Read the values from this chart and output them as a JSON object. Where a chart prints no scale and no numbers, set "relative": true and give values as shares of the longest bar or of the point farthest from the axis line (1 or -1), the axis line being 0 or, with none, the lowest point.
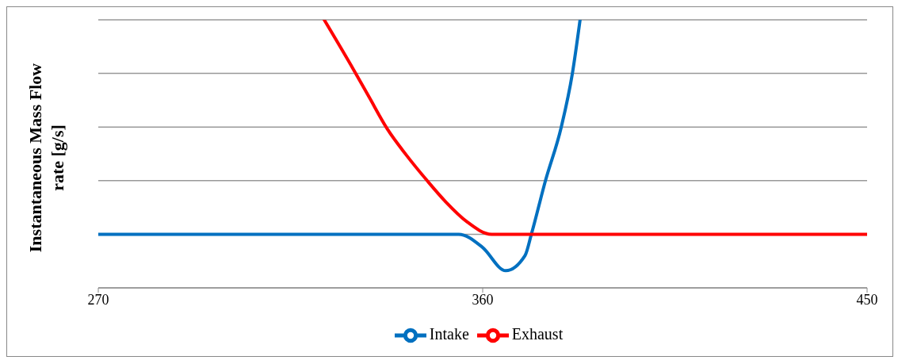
{
  "chart_data": {
    "type": "line",
    "relative": true,
    "ylabel": "Instantaneous Mass Flow rate [g/s]",
    "xlim": [
      270,
      450
    ],
    "xticks": [
      270,
      360,
      450
    ],
    "grid": "y",
    "legend": "bottom",
    "marker": "none",
    "line_style": "solid",
    "series": [
      {
        "name": "Intake",
        "color": "#0070c0",
        "x": [
          270,
          354.4,
          359.9,
          365.4,
          369.9,
          371.4,
          374.7,
          378.4,
          381.0,
          382.8
        ],
        "values": [
          0,
          0,
          -0.06,
          -0.17,
          -0.1,
          0,
          0.25,
          0.5,
          0.75,
          1.0
        ]
      },
      {
        "name": "Exhaust",
        "color": "#ff0000",
        "x": [
          322.9,
          329.7,
          333.4,
          337.7,
          342.1,
          347.0,
          351.4,
          356.2,
          362.1,
          450
        ],
        "values": [
          1.0,
          0.77,
          0.64,
          0.49,
          0.37,
          0.25,
          0.15,
          0.06,
          0,
          0
        ]
      }
    ]
  }
}
